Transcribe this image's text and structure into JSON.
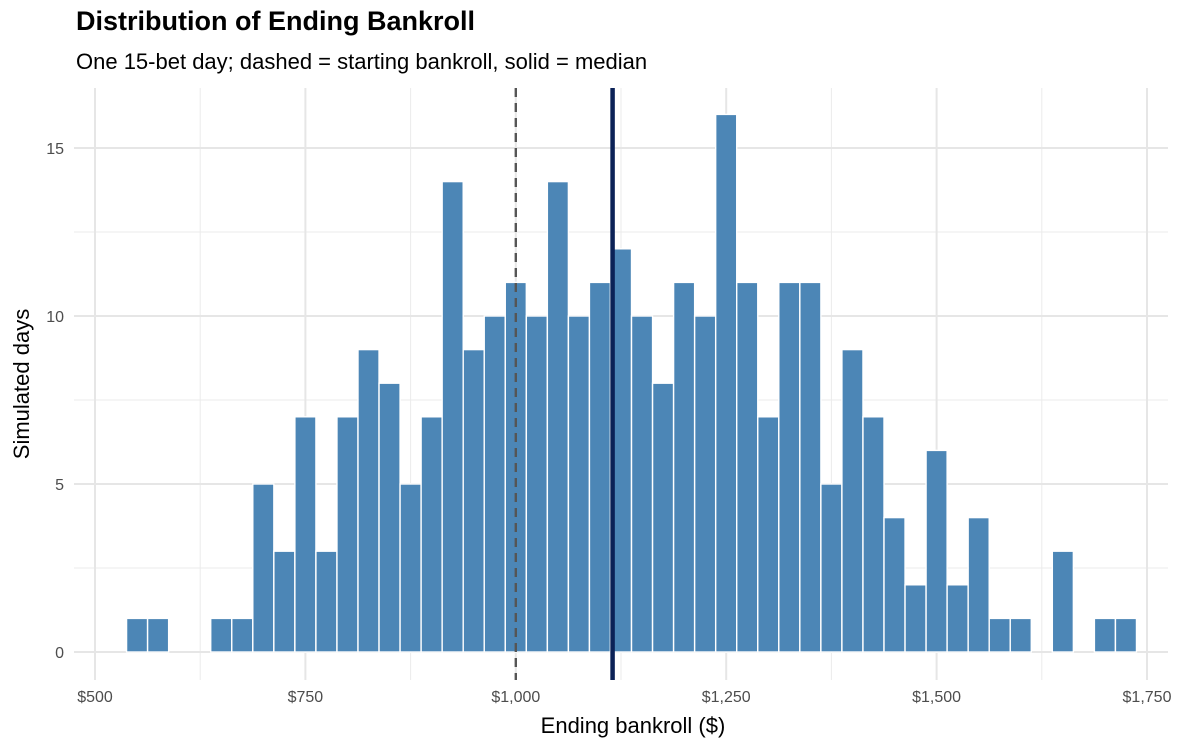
{
  "chart_data": {
    "type": "bar",
    "title": "Distribution of Ending Bankroll",
    "subtitle": "One 15-bet day; dashed = starting bankroll, solid = median",
    "xlabel": "Ending bankroll ($)",
    "ylabel": "Simulated days",
    "xlim": [
      500,
      1750
    ],
    "ylim": [
      0,
      16
    ],
    "x_ticks": [
      {
        "value": 500,
        "label": "$500"
      },
      {
        "value": 750,
        "label": "$750"
      },
      {
        "value": 1000,
        "label": "$1,000"
      },
      {
        "value": 1250,
        "label": "$1,250"
      },
      {
        "value": 1500,
        "label": "$1,500"
      },
      {
        "value": 1750,
        "label": "$1,750"
      }
    ],
    "y_ticks": [
      {
        "value": 0,
        "label": "0"
      },
      {
        "value": 5,
        "label": "5"
      },
      {
        "value": 10,
        "label": "10"
      },
      {
        "value": 15,
        "label": "15"
      }
    ],
    "bin_width": 25,
    "bin_centers": [
      550,
      575,
      600,
      625,
      650,
      675,
      700,
      725,
      750,
      775,
      800,
      825,
      850,
      875,
      900,
      925,
      950,
      975,
      1000,
      1025,
      1050,
      1075,
      1100,
      1125,
      1150,
      1175,
      1200,
      1225,
      1250,
      1275,
      1300,
      1325,
      1350,
      1375,
      1400,
      1425,
      1450,
      1475,
      1500,
      1525,
      1550,
      1575,
      1600,
      1625,
      1650,
      1675,
      1700,
      1725
    ],
    "values": [
      1,
      1,
      0,
      0,
      1,
      1,
      5,
      3,
      7,
      3,
      7,
      9,
      8,
      5,
      7,
      14,
      9,
      10,
      11,
      10,
      14,
      10,
      11,
      12,
      10,
      8,
      11,
      10,
      16,
      11,
      7,
      11,
      11,
      5,
      9,
      7,
      4,
      2,
      6,
      2,
      4,
      1,
      1,
      0,
      3,
      0,
      1,
      1
    ],
    "reference_lines": [
      {
        "name": "starting bankroll",
        "value": 1000,
        "style": "dashed",
        "color": "#555555"
      },
      {
        "name": "median",
        "value": 1115,
        "style": "solid",
        "color": "#0b2257"
      }
    ],
    "bar_color": "#4682b4",
    "grid": true
  }
}
